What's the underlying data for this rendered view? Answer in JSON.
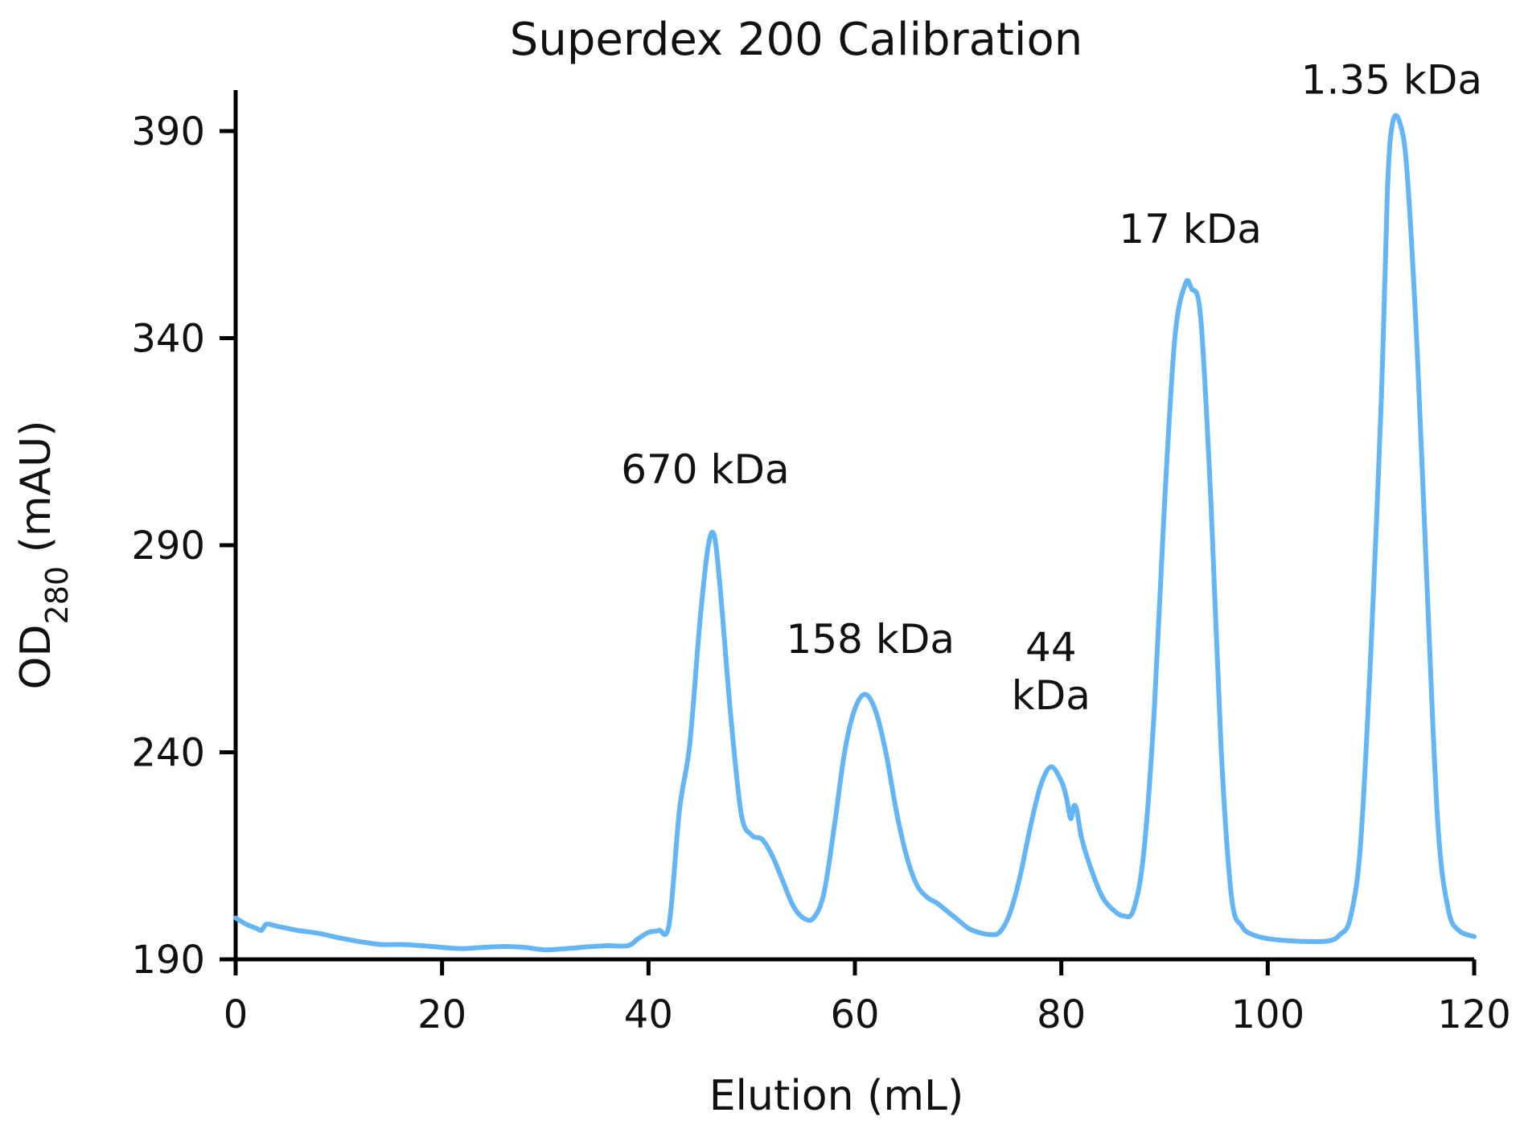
{
  "chart_data": {
    "type": "line",
    "title": "Superdex 200 Calibration",
    "xlabel": "Elution (mL)",
    "ylabel": {
      "main": "OD",
      "sub": "280",
      "unit": " (mAU)"
    },
    "xlim": [
      0,
      120
    ],
    "ylim": [
      190,
      400
    ],
    "xticks": [
      0,
      20,
      40,
      60,
      80,
      100,
      120
    ],
    "yticks": [
      190,
      240,
      290,
      340,
      390
    ],
    "grid": false,
    "legend": "none",
    "line_color": "#64B5F6",
    "series": [
      {
        "x": [
          0,
          1,
          2,
          2.5,
          3,
          4,
          6,
          8,
          10,
          12,
          14,
          16,
          18,
          20,
          22,
          24,
          26,
          28,
          30,
          32,
          34,
          36,
          38,
          39,
          40,
          41,
          42,
          43,
          44,
          45,
          45.8,
          46.4,
          47,
          48,
          49,
          50,
          51,
          52,
          53,
          54,
          55,
          56,
          57,
          58,
          59,
          60,
          61,
          62,
          63,
          64,
          65,
          66,
          67,
          68,
          69,
          70,
          71,
          72,
          73,
          74,
          75,
          76,
          77,
          78,
          79,
          80,
          80.5,
          80.9,
          81.2,
          81.5,
          82,
          83,
          84,
          85,
          86,
          87,
          88,
          89,
          90,
          91,
          92,
          92.6,
          93.5,
          94.5,
          95.5,
          96.5,
          97.5,
          98.5,
          100,
          102,
          104,
          106,
          107,
          108,
          109,
          110,
          111,
          111.6,
          112.1,
          112.8,
          113.5,
          114.5,
          115.5,
          116.5,
          117.5,
          118.5,
          120
        ],
        "y": [
          200,
          198.5,
          197.5,
          197,
          198.5,
          198,
          197,
          196.3,
          195.2,
          194.3,
          193.6,
          193.6,
          193.3,
          192.9,
          192.6,
          192.9,
          193.1,
          192.9,
          192.3,
          192.6,
          193,
          193.3,
          193.3,
          195,
          196.5,
          197,
          198.5,
          226,
          242,
          272,
          290,
          292,
          278,
          248,
          225,
          220,
          219,
          215,
          209,
          203,
          200,
          200,
          206,
          222,
          240,
          250.5,
          254,
          250,
          240,
          226,
          215,
          208,
          205,
          203.5,
          201.5,
          199.5,
          197.5,
          196.5,
          196,
          196.5,
          201,
          210,
          222,
          232,
          236.5,
          233,
          229,
          224,
          227,
          226,
          219,
          211,
          205,
          202,
          200.5,
          202,
          216,
          250,
          300,
          340,
          353,
          352,
          345,
          300,
          240,
          205,
          198,
          196,
          195,
          194.5,
          194.3,
          194.5,
          196,
          200,
          218,
          265,
          325,
          376,
          392,
          392,
          380,
          336,
          276,
          222,
          202,
          197,
          195.5
        ]
      }
    ],
    "annotations": [
      {
        "text": "670 kDa",
        "x": 45.5,
        "y": 305
      },
      {
        "text": "158 kDa",
        "x": 61.5,
        "y": 264
      },
      {
        "lines": [
          "44",
          "kDa"
        ],
        "x": 79,
        "y": 262
      },
      {
        "text": "17 kDa",
        "x": 92.5,
        "y": 363
      },
      {
        "text": "1.35 kDa",
        "x": 112,
        "y": 399
      }
    ]
  }
}
